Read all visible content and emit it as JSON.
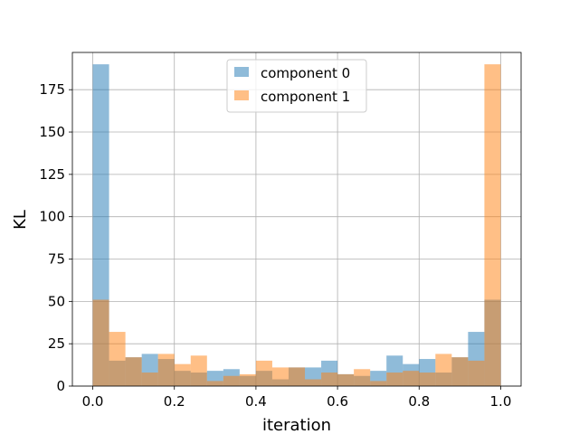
{
  "chart_data": {
    "type": "histogram",
    "title": "",
    "xlabel": "iteration",
    "ylabel": "KL",
    "xlim": [
      -0.05,
      1.05
    ],
    "ylim": [
      0,
      197
    ],
    "xticks": [
      0.0,
      0.2,
      0.4,
      0.6,
      0.8,
      1.0
    ],
    "xtick_labels": [
      "0.0",
      "0.2",
      "0.4",
      "0.6",
      "0.8",
      "1.0"
    ],
    "yticks": [
      0,
      25,
      50,
      75,
      100,
      125,
      150,
      175
    ],
    "ytick_labels": [
      "0",
      "25",
      "50",
      "75",
      "100",
      "125",
      "150",
      "175"
    ],
    "grid": true,
    "legend_position": "top-center",
    "bin_edges": [
      0.0,
      0.04,
      0.08,
      0.12,
      0.16,
      0.2,
      0.24,
      0.28,
      0.32,
      0.36,
      0.4,
      0.44,
      0.48,
      0.52,
      0.56,
      0.6,
      0.64,
      0.68,
      0.72,
      0.76,
      0.8,
      0.84,
      0.88,
      0.92,
      0.96,
      1.0
    ],
    "series": [
      {
        "name": "component 0",
        "color": "#1f77b4",
        "alpha": 0.5,
        "values": [
          190,
          15,
          17,
          19,
          16,
          9,
          8,
          9,
          10,
          6,
          9,
          4,
          11,
          11,
          15,
          7,
          6,
          9,
          18,
          13,
          16,
          8,
          17,
          32,
          51
        ]
      },
      {
        "name": "component 1",
        "color": "#ff7f0e",
        "alpha": 0.5,
        "values": [
          51,
          32,
          17,
          8,
          19,
          13,
          18,
          3,
          6,
          7,
          15,
          11,
          11,
          4,
          8,
          7,
          10,
          3,
          8,
          9,
          8,
          19,
          17,
          15,
          190
        ]
      }
    ]
  }
}
